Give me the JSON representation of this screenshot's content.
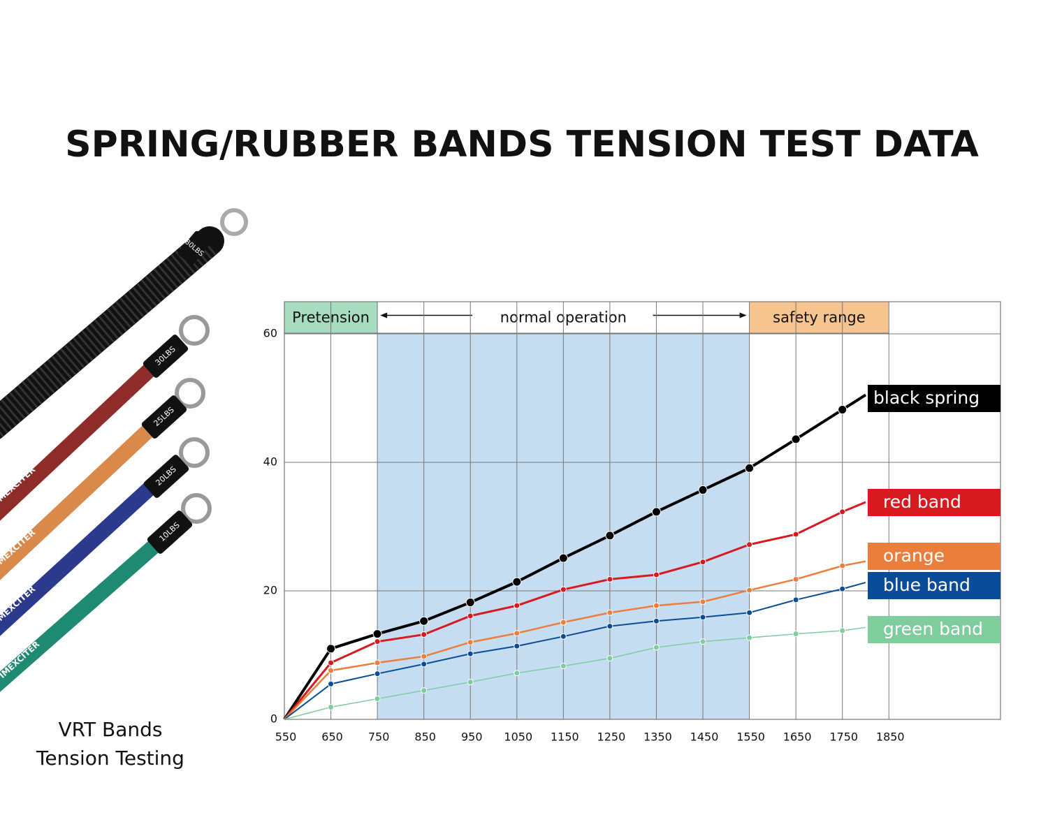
{
  "chart_data": {
    "type": "line",
    "title": "SPRING/RUBBER BANDS TENSION TEST DATA",
    "x": [
      550,
      650,
      750,
      850,
      950,
      1050,
      1150,
      1250,
      1350,
      1450,
      1550,
      1650,
      1750,
      1800
    ],
    "series": [
      {
        "name": "black spring",
        "color": "#000000",
        "values": [
          0,
          11.0,
          13.3,
          15.3,
          18.2,
          21.4,
          25.1,
          28.6,
          32.3,
          35.7,
          39.1,
          43.6,
          48.2,
          50.5
        ]
      },
      {
        "name": "red band",
        "color": "#d71920",
        "values": [
          0,
          8.8,
          12.1,
          13.2,
          16.1,
          17.7,
          20.2,
          21.8,
          22.5,
          24.5,
          27.2,
          28.8,
          32.3,
          33.8
        ]
      },
      {
        "name": "orange",
        "color": "#eb7e3c",
        "values": [
          0,
          7.6,
          8.8,
          9.8,
          12.0,
          13.4,
          15.1,
          16.6,
          17.7,
          18.3,
          20.1,
          21.8,
          23.9,
          24.6
        ]
      },
      {
        "name": "blue band",
        "color": "#0a4c98",
        "values": [
          0,
          5.5,
          7.1,
          8.6,
          10.2,
          11.4,
          12.9,
          14.5,
          15.3,
          15.9,
          16.6,
          18.6,
          20.3,
          21.3
        ]
      },
      {
        "name": "green band",
        "color": "#7fcc9c",
        "values": [
          0,
          1.9,
          3.2,
          4.5,
          5.8,
          7.2,
          8.3,
          9.5,
          11.2,
          12.1,
          12.7,
          13.3,
          13.8,
          14.3
        ]
      }
    ],
    "regions": [
      {
        "label": "Pretension",
        "range": [
          550,
          750
        ],
        "color": "#a8dcc0"
      },
      {
        "label": "normal operation",
        "range": [
          750,
          1550
        ],
        "color": "#c5dcf1"
      },
      {
        "label": "safety range",
        "range": [
          1550,
          1850
        ],
        "color": "#f6c48e"
      }
    ],
    "xlim": [
      550,
      2090
    ],
    "xticks": [
      550,
      650,
      750,
      850,
      950,
      1050,
      1150,
      1250,
      1350,
      1450,
      1550,
      1650,
      1750,
      1850
    ],
    "ylim": [
      0,
      65
    ],
    "yticks": [
      0,
      20,
      40,
      60
    ],
    "grid": true
  },
  "product_image": {
    "caption": [
      "VRT  Bands",
      "Tension Testing"
    ],
    "band_labels": [
      "80LBS",
      "30LBS",
      "25LBS",
      "20LBS",
      "10LBS"
    ],
    "brand": "IMEXCITER"
  }
}
